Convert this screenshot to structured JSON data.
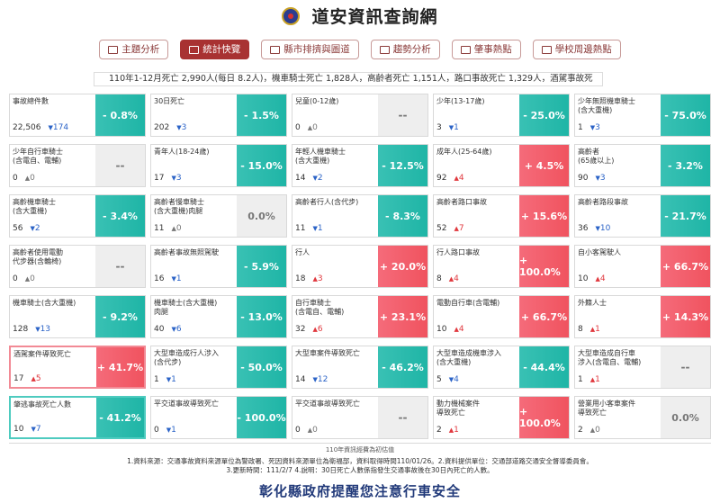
{
  "app_title": "道安資訊查詢網",
  "tabs": [
    {
      "label": "主題分析",
      "icon": "chart-icon",
      "active": false
    },
    {
      "label": "統計快覽",
      "icon": "dashboard-icon",
      "active": true
    },
    {
      "label": "縣市排擠與圖道",
      "icon": "bar-chart-icon",
      "active": false
    },
    {
      "label": "趨勢分析",
      "icon": "trend-icon",
      "active": false
    },
    {
      "label": "肇事熱點",
      "icon": "map-icon",
      "active": false
    },
    {
      "label": "學校周邊熱點",
      "icon": "school-icon",
      "active": false
    }
  ],
  "summary_text": "110年1-12月死亡 2,990人(每日 8.2人)，機車騎士死亡 1,828人，高齡者死亡 1,151人，路口事故死亡 1,329人，酒駕事故死",
  "colors": {
    "green": "#1fb5a6",
    "red": "#f0535f",
    "gray": "#eeeeee",
    "accent": "#a83232"
  },
  "cards": [
    {
      "label": "事故總件數",
      "value": "22,506",
      "delta": "174",
      "dir": "down",
      "pct": "- 0.8%",
      "color": "green",
      "border": "none"
    },
    {
      "label": "30日死亡",
      "value": "202",
      "delta": "3",
      "dir": "down",
      "pct": "- 1.5%",
      "color": "green",
      "border": "none"
    },
    {
      "label": "兒童(0-12歲)",
      "value": "0",
      "delta": "0",
      "dir": "zero",
      "pct": "--",
      "color": "gray",
      "border": "none"
    },
    {
      "label": "少年(13-17歲)",
      "value": "3",
      "delta": "1",
      "dir": "down",
      "pct": "- 25.0%",
      "color": "green",
      "border": "none"
    },
    {
      "label": "少年無照機車騎士\n(含大重機)",
      "value": "1",
      "delta": "3",
      "dir": "down",
      "pct": "- 75.0%",
      "color": "green",
      "border": "none"
    },
    {
      "label": "少年自行車騎士\n(含電自、電輔)",
      "value": "0",
      "delta": "0",
      "dir": "zero",
      "pct": "--",
      "color": "gray",
      "border": "none"
    },
    {
      "label": "青年人(18-24歲)",
      "value": "17",
      "delta": "3",
      "dir": "down",
      "pct": "- 15.0%",
      "color": "green",
      "border": "none"
    },
    {
      "label": "年輕人機車騎士\n(含大重機)",
      "value": "14",
      "delta": "2",
      "dir": "down",
      "pct": "- 12.5%",
      "color": "green",
      "border": "none"
    },
    {
      "label": "成年人(25-64歲)",
      "value": "92",
      "delta": "4",
      "dir": "up",
      "pct": "+ 4.5%",
      "color": "red",
      "border": "none"
    },
    {
      "label": "高齡者\n(65歲以上)",
      "value": "90",
      "delta": "3",
      "dir": "down",
      "pct": "- 3.2%",
      "color": "green",
      "border": "none"
    },
    {
      "label": "高齡機車騎士\n(含大重機)",
      "value": "56",
      "delta": "2",
      "dir": "down",
      "pct": "- 3.4%",
      "color": "green",
      "border": "none"
    },
    {
      "label": "高齡者慢車騎士\n(含大重機)肉腿",
      "value": "11",
      "delta": "0",
      "dir": "zero",
      "pct": "0.0%",
      "color": "gray",
      "border": "none"
    },
    {
      "label": "高齡者行人(含代步)",
      "value": "11",
      "delta": "1",
      "dir": "down",
      "pct": "- 8.3%",
      "color": "green",
      "border": "none"
    },
    {
      "label": "高齡者路口事故",
      "value": "52",
      "delta": "7",
      "dir": "up",
      "pct": "+ 15.6%",
      "color": "red",
      "border": "none"
    },
    {
      "label": "高齡者路段事故",
      "value": "36",
      "delta": "10",
      "dir": "down",
      "pct": "- 21.7%",
      "color": "green",
      "border": "none"
    },
    {
      "label": "高齡者使用電動\n代步器(含輪椅)",
      "value": "0",
      "delta": "0",
      "dir": "zero",
      "pct": "--",
      "color": "gray",
      "border": "none"
    },
    {
      "label": "高齡者事故無照駕駛",
      "value": "16",
      "delta": "1",
      "dir": "down",
      "pct": "- 5.9%",
      "color": "green",
      "border": "none"
    },
    {
      "label": "行人",
      "value": "18",
      "delta": "3",
      "dir": "up",
      "pct": "+ 20.0%",
      "color": "red",
      "border": "none"
    },
    {
      "label": "行人路口事故",
      "value": "8",
      "delta": "4",
      "dir": "up",
      "pct": "+ 100.0%",
      "color": "red",
      "border": "none"
    },
    {
      "label": "自小客駕駛人",
      "value": "10",
      "delta": "4",
      "dir": "up",
      "pct": "+ 66.7%",
      "color": "red",
      "border": "none"
    },
    {
      "label": "機車騎士(含大重機)",
      "value": "128",
      "delta": "13",
      "dir": "down",
      "pct": "- 9.2%",
      "color": "green",
      "border": "none"
    },
    {
      "label": "機車騎士(含大重機)\n肉腿",
      "value": "40",
      "delta": "6",
      "dir": "down",
      "pct": "- 13.0%",
      "color": "green",
      "border": "none"
    },
    {
      "label": "自行車騎士\n(含電自、電輔)",
      "value": "32",
      "delta": "6",
      "dir": "up",
      "pct": "+ 23.1%",
      "color": "red",
      "border": "none"
    },
    {
      "label": "電動自行車(含電輔)",
      "value": "10",
      "delta": "4",
      "dir": "up",
      "pct": "+ 66.7%",
      "color": "red",
      "border": "none"
    },
    {
      "label": "外籍人士",
      "value": "8",
      "delta": "1",
      "dir": "up",
      "pct": "+ 14.3%",
      "color": "red",
      "border": "none"
    },
    {
      "label": "酒駕案件導致死亡",
      "value": "17",
      "delta": "5",
      "dir": "up",
      "pct": "+ 41.7%",
      "color": "red",
      "border": "red"
    },
    {
      "label": "大型車造成行人涉入\n(含代步)",
      "value": "1",
      "delta": "1",
      "dir": "down",
      "pct": "- 50.0%",
      "color": "green",
      "border": "none"
    },
    {
      "label": "大型車案件導致死亡",
      "value": "14",
      "delta": "12",
      "dir": "down",
      "pct": "- 46.2%",
      "color": "green",
      "border": "none"
    },
    {
      "label": "大型車造成機車涉入\n(含大重機)",
      "value": "5",
      "delta": "4",
      "dir": "down",
      "pct": "- 44.4%",
      "color": "green",
      "border": "none"
    },
    {
      "label": "大型車造成自行車\n涉入(含電自、電輔)",
      "value": "1",
      "delta": "1",
      "dir": "up",
      "pct": "--",
      "color": "gray",
      "border": "none"
    },
    {
      "label": "肇逃事故死亡人數",
      "value": "10",
      "delta": "7",
      "dir": "down",
      "pct": "- 41.2%",
      "color": "green",
      "border": "green"
    },
    {
      "label": "平交道事故導致死亡",
      "value": "0",
      "delta": "1",
      "dir": "down",
      "pct": "- 100.0%",
      "color": "green",
      "border": "none"
    },
    {
      "label": "平交道事故導致死亡",
      "value": "0",
      "delta": "0",
      "dir": "zero",
      "pct": "--",
      "color": "gray",
      "border": "none"
    },
    {
      "label": "動力機械案件\n導致死亡",
      "value": "2",
      "delta": "1",
      "dir": "up",
      "pct": "+ 100.0%",
      "color": "red",
      "border": "none"
    },
    {
      "label": "營業用小客車案件\n導致死亡",
      "value": "2",
      "delta": "0",
      "dir": "zero",
      "pct": "0.0%",
      "color": "gray",
      "border": "none"
    }
  ],
  "footnote": "110年資訊經費為初估值",
  "source_lines": [
    "1.資料來源：交通事故資料來源單位為警政署、死因資料來源單位為衛福部，資料取得時間110/01/26。2.資料提供單位：交通部道路交通安全督導委員會。",
    "3.更新時間：111/2/7 4.說明：30日死亡人數係指發生交通事故後在30日內死亡的人數。"
  ],
  "slogan": "彰化縣政府提醒您注意行車安全"
}
